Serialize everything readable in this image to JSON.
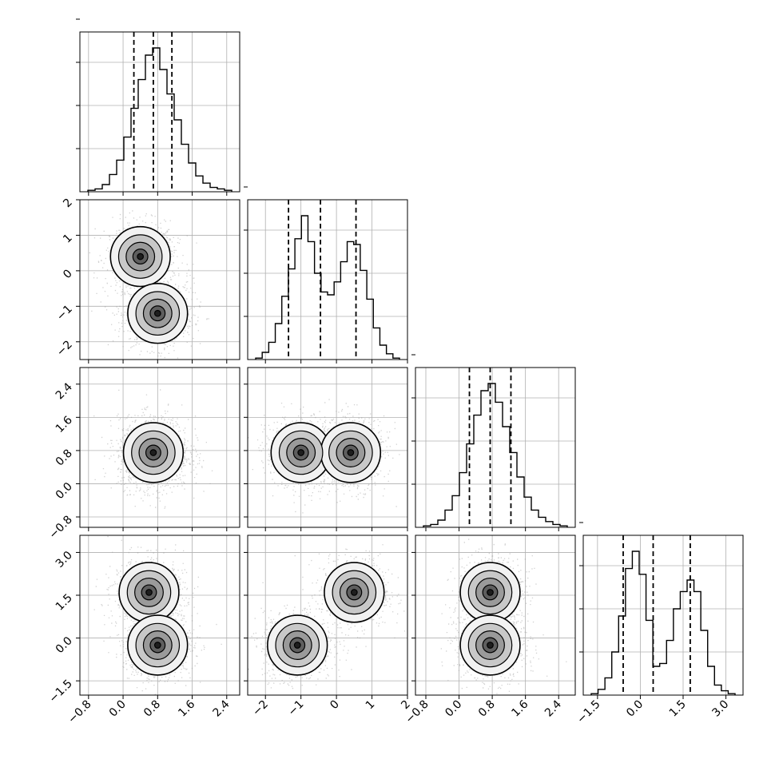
{
  "chart_data": {
    "type": "corner",
    "n_params": 4,
    "axis_ranges": [
      [
        -1.0,
        2.7
      ],
      [
        -2.5,
        2.0
      ],
      [
        -1.05,
        2.8
      ],
      [
        -2.0,
        3.6
      ]
    ],
    "tick_labels": [
      [
        "−0.8",
        "0.0",
        "0.8",
        "1.6",
        "2.4"
      ],
      [
        "−2",
        "−1",
        "0",
        "1",
        "2"
      ],
      [
        "−0.8",
        "0.0",
        "0.8",
        "1.6",
        "2.4"
      ],
      [
        "−1.5",
        "0.0",
        "1.5",
        "3.0"
      ]
    ],
    "tick_values": [
      [
        -0.8,
        0.0,
        0.8,
        1.6,
        2.4
      ],
      [
        -2,
        -1,
        0,
        1,
        2
      ],
      [
        -0.8,
        0.0,
        0.8,
        1.6,
        2.4
      ],
      [
        -1.5,
        0.0,
        1.5,
        3.0
      ]
    ],
    "quantiles": [
      [
        0.25,
        0.7,
        1.13
      ],
      [
        -1.35,
        -0.45,
        0.55
      ],
      [
        0.25,
        0.75,
        1.25
      ],
      [
        -0.6,
        0.45,
        1.75
      ]
    ],
    "histograms": [
      [
        0.01,
        0.02,
        0.05,
        0.12,
        0.22,
        0.38,
        0.58,
        0.78,
        0.95,
        1.0,
        0.85,
        0.68,
        0.5,
        0.33,
        0.2,
        0.11,
        0.06,
        0.03,
        0.02,
        0.01
      ],
      [
        0.01,
        0.05,
        0.12,
        0.25,
        0.44,
        0.63,
        0.84,
        1.0,
        0.82,
        0.6,
        0.47,
        0.45,
        0.54,
        0.68,
        0.82,
        0.8,
        0.62,
        0.42,
        0.22,
        0.1,
        0.04,
        0.01
      ],
      [
        0.01,
        0.02,
        0.05,
        0.12,
        0.22,
        0.38,
        0.58,
        0.78,
        0.95,
        1.0,
        0.87,
        0.7,
        0.52,
        0.35,
        0.21,
        0.12,
        0.07,
        0.04,
        0.02,
        0.01
      ],
      [
        0.01,
        0.04,
        0.12,
        0.3,
        0.55,
        0.88,
        1.0,
        0.84,
        0.52,
        0.2,
        0.22,
        0.38,
        0.6,
        0.72,
        0.8,
        0.72,
        0.45,
        0.2,
        0.07,
        0.03,
        0.01
      ]
    ],
    "modes_2d": {
      "1-0": [
        [
          0.4,
          0.4
        ],
        [
          0.8,
          -1.2
        ]
      ],
      "2-0": [
        [
          0.7,
          0.75
        ]
      ],
      "2-1": [
        [
          -1.0,
          0.75
        ],
        [
          0.4,
          0.75
        ]
      ],
      "3-0": [
        [
          0.6,
          1.6
        ],
        [
          0.8,
          -0.25
        ]
      ],
      "3-1": [
        [
          -1.1,
          -0.25
        ],
        [
          0.5,
          1.6
        ]
      ],
      "3-2": [
        [
          0.75,
          1.6
        ],
        [
          0.75,
          -0.25
        ]
      ]
    },
    "grid": true
  }
}
